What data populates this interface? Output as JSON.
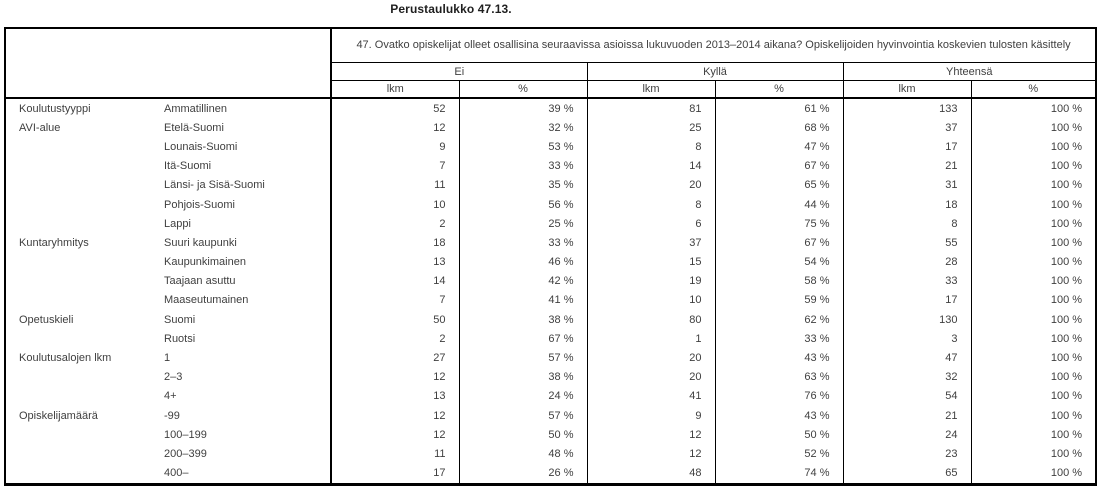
{
  "title": "Perustaulukko 47.13.",
  "table": {
    "question": "47. Ovatko opiskelijat olleet osallisina seuraavissa asioissa lukuvuoden 2013–2014 aikana? Opiskelijoiden hyvinvointia koskevien tulosten käsittely",
    "groups": [
      {
        "label": "Ei"
      },
      {
        "label": "Kyllä"
      },
      {
        "label": "Yhteensä"
      }
    ],
    "subheaders": [
      "lkm",
      "%",
      "lkm",
      "%",
      "lkm",
      "%"
    ],
    "rows": [
      {
        "category": "Koulutustyyppi",
        "label": "Ammatillinen",
        "values": [
          "52",
          "39 %",
          "81",
          "61 %",
          "133",
          "100 %"
        ]
      },
      {
        "category": "AVI-alue",
        "label": "Etelä-Suomi",
        "values": [
          "12",
          "32 %",
          "25",
          "68 %",
          "37",
          "100 %"
        ]
      },
      {
        "category": "",
        "label": "Lounais-Suomi",
        "values": [
          "9",
          "53 %",
          "8",
          "47 %",
          "17",
          "100 %"
        ]
      },
      {
        "category": "",
        "label": "Itä-Suomi",
        "values": [
          "7",
          "33 %",
          "14",
          "67 %",
          "21",
          "100 %"
        ]
      },
      {
        "category": "",
        "label": "Länsi- ja Sisä-Suomi",
        "values": [
          "11",
          "35 %",
          "20",
          "65 %",
          "31",
          "100 %"
        ]
      },
      {
        "category": "",
        "label": "Pohjois-Suomi",
        "values": [
          "10",
          "56 %",
          "8",
          "44 %",
          "18",
          "100 %"
        ]
      },
      {
        "category": "",
        "label": "Lappi",
        "values": [
          "2",
          "25 %",
          "6",
          "75 %",
          "8",
          "100 %"
        ]
      },
      {
        "category": "Kuntaryhmitys",
        "label": "Suuri kaupunki",
        "values": [
          "18",
          "33 %",
          "37",
          "67 %",
          "55",
          "100 %"
        ]
      },
      {
        "category": "",
        "label": "Kaupunkimainen",
        "values": [
          "13",
          "46 %",
          "15",
          "54 %",
          "28",
          "100 %"
        ]
      },
      {
        "category": "",
        "label": "Taajaan asuttu",
        "values": [
          "14",
          "42 %",
          "19",
          "58 %",
          "33",
          "100 %"
        ]
      },
      {
        "category": "",
        "label": "Maaseutumainen",
        "values": [
          "7",
          "41 %",
          "10",
          "59 %",
          "17",
          "100 %"
        ]
      },
      {
        "category": "Opetuskieli",
        "label": "Suomi",
        "values": [
          "50",
          "38 %",
          "80",
          "62 %",
          "130",
          "100 %"
        ]
      },
      {
        "category": "",
        "label": "Ruotsi",
        "values": [
          "2",
          "67 %",
          "1",
          "33 %",
          "3",
          "100 %"
        ]
      },
      {
        "category": "Koulutusalojen lkm",
        "label": "1",
        "values": [
          "27",
          "57 %",
          "20",
          "43 %",
          "47",
          "100 %"
        ]
      },
      {
        "category": "",
        "label": "2–3",
        "values": [
          "12",
          "38 %",
          "20",
          "63 %",
          "32",
          "100 %"
        ]
      },
      {
        "category": "",
        "label": "4+",
        "values": [
          "13",
          "24 %",
          "41",
          "76 %",
          "54",
          "100 %"
        ]
      },
      {
        "category": "Opiskelijamäärä",
        "label": "-99",
        "values": [
          "12",
          "57 %",
          "9",
          "43 %",
          "21",
          "100 %"
        ]
      },
      {
        "category": "",
        "label": "100–199",
        "values": [
          "12",
          "50 %",
          "12",
          "50 %",
          "24",
          "100 %"
        ]
      },
      {
        "category": "",
        "label": "200–399",
        "values": [
          "11",
          "48 %",
          "12",
          "52 %",
          "23",
          "100 %"
        ]
      },
      {
        "category": "",
        "label": "400–",
        "values": [
          "17",
          "26 %",
          "48",
          "74 %",
          "65",
          "100 %"
        ]
      }
    ]
  },
  "colors": {
    "border": "#000000",
    "text": "#3f3f3f",
    "background": "#ffffff"
  }
}
